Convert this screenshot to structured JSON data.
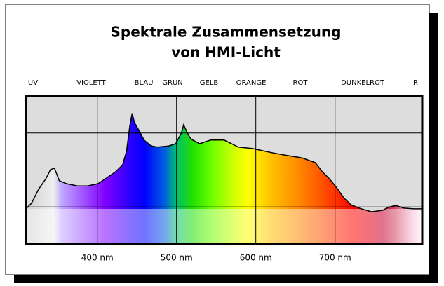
{
  "chart_data": {
    "type": "area",
    "title": [
      "Spektrale Zusammensetzung",
      "von HMI-Licht"
    ],
    "band_labels": [
      "UV",
      "VIOLETT",
      "BLAU",
      "GRÜN",
      "GELB",
      "ORANGE",
      "ROT",
      "DUNKELROT",
      "IR"
    ],
    "x": [
      310,
      317,
      326,
      335,
      341,
      346,
      352,
      361,
      375,
      388,
      401,
      410,
      423,
      432,
      437,
      441,
      444,
      447,
      452,
      459,
      468,
      476,
      490,
      499,
      506,
      509,
      513,
      518,
      529,
      543,
      560,
      578,
      596,
      609,
      622,
      640,
      658,
      675,
      684,
      693,
      702,
      711,
      720,
      733,
      746,
      760,
      768,
      777,
      786,
      799,
      810
    ],
    "values": [
      0.95,
      1.1,
      1.48,
      1.76,
      2.01,
      2.05,
      1.71,
      1.63,
      1.57,
      1.57,
      1.63,
      1.76,
      1.95,
      2.14,
      2.52,
      3.18,
      3.53,
      3.28,
      3.09,
      2.81,
      2.65,
      2.62,
      2.65,
      2.71,
      3.0,
      3.22,
      3.03,
      2.84,
      2.71,
      2.81,
      2.81,
      2.62,
      2.58,
      2.52,
      2.46,
      2.39,
      2.33,
      2.2,
      1.95,
      1.76,
      1.52,
      1.25,
      1.06,
      0.95,
      0.87,
      0.91,
      1.0,
      1.04,
      0.97,
      0.95,
      0.95
    ],
    "xlim": [
      310,
      810
    ],
    "xticks": [
      {
        "value": 400,
        "label": "400 nm"
      },
      {
        "value": 500,
        "label": "500 nm"
      },
      {
        "value": 600,
        "label": "600 nm"
      },
      {
        "value": 700,
        "label": "700 nm"
      }
    ],
    "ylim": [
      0,
      4
    ],
    "yticks": [
      0,
      1,
      2,
      3,
      4
    ],
    "grid": true,
    "line_color": "#000000",
    "background": "#dddddd"
  }
}
